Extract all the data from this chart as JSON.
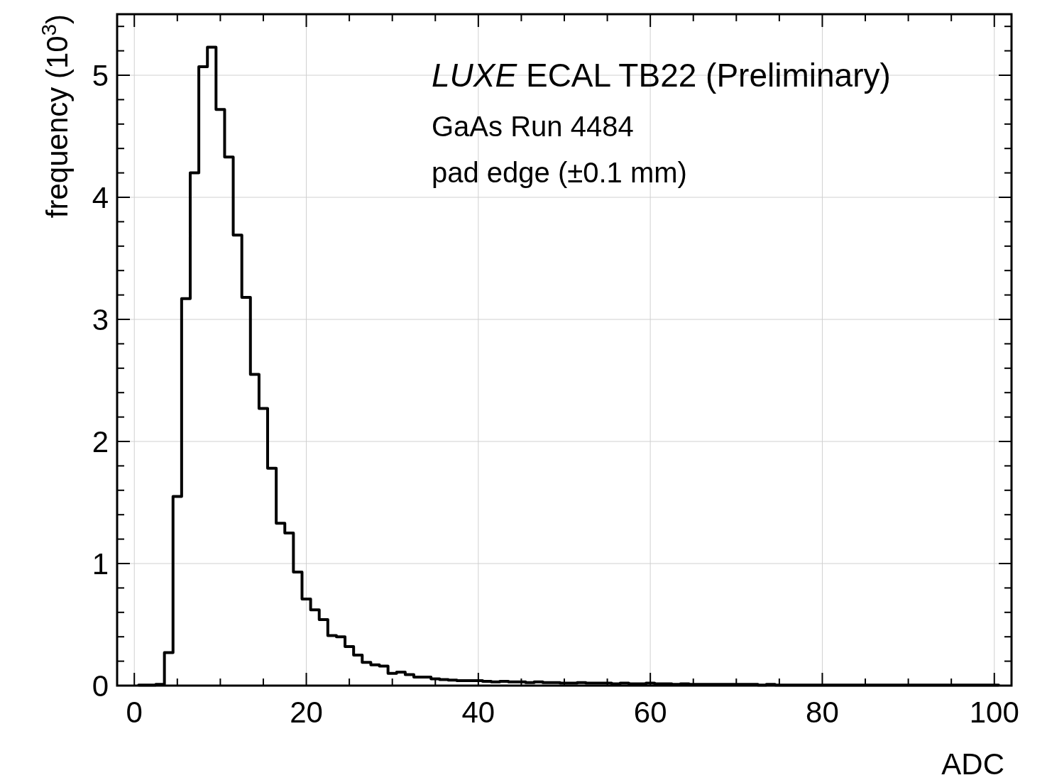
{
  "chart_data": {
    "type": "histogram",
    "xlabel": "ADC",
    "ylabel": "frequency (10$^{3}$)",
    "annotations": [
      "LUXE ECAL TB22 (Preliminary)",
      "GaAs Run 4484",
      "pad edge (±0.1 mm)"
    ],
    "bins": [
      0.5,
      1.5,
      2.5,
      3.5,
      4.5,
      5.5,
      6.5,
      7.5,
      8.5,
      9.5,
      10.5,
      11.5,
      12.5,
      13.5,
      14.5,
      15.5,
      16.5,
      17.5,
      18.5,
      19.5,
      20.5,
      21.5,
      22.5,
      23.5,
      24.5,
      25.5,
      26.5,
      27.5,
      28.5,
      29.5,
      30.5,
      31.5,
      32.5,
      33.5,
      34.5,
      35.5,
      36.5,
      37.5,
      38.5,
      39.5,
      40.5,
      41.5,
      42.5,
      43.5,
      44.5,
      45.5,
      46.5,
      47.5,
      48.5,
      49.5,
      50.5,
      51.5,
      52.5,
      53.5,
      54.5,
      55.5,
      56.5,
      57.5,
      58.5,
      59.5,
      60.5,
      61.5,
      62.5,
      63.5,
      64.5,
      65.5,
      66.5,
      67.5,
      68.5,
      69.5,
      70.5,
      71.5,
      72.5,
      73.5,
      74.5,
      75.5,
      76.5,
      77.5,
      78.5,
      79.5,
      80.5,
      81.5,
      82.5,
      83.5,
      84.5,
      85.5,
      86.5,
      87.5,
      88.5,
      89.5,
      90.5,
      91.5,
      92.5,
      93.5,
      94.5,
      95.5,
      96.5,
      97.5,
      98.5,
      99.5,
      100.5
    ],
    "values": [
      0.005,
      0.005,
      0.01,
      0.27,
      1.55,
      3.17,
      4.2,
      5.07,
      5.23,
      4.72,
      4.33,
      3.69,
      3.18,
      2.55,
      2.27,
      1.78,
      1.33,
      1.25,
      0.93,
      0.71,
      0.62,
      0.54,
      0.41,
      0.4,
      0.32,
      0.25,
      0.19,
      0.17,
      0.16,
      0.1,
      0.11,
      0.09,
      0.07,
      0.07,
      0.055,
      0.05,
      0.045,
      0.04,
      0.04,
      0.04,
      0.035,
      0.03,
      0.035,
      0.03,
      0.03,
      0.025,
      0.03,
      0.025,
      0.025,
      0.02,
      0.02,
      0.025,
      0.02,
      0.02,
      0.02,
      0.015,
      0.02,
      0.015,
      0.015,
      0.02,
      0.015,
      0.015,
      0.01,
      0.015,
      0.01,
      0.01,
      0.01,
      0.01,
      0.01,
      0.01,
      0.01,
      0.01,
      0.005,
      0.01,
      0.005,
      0.005,
      0.005,
      0.005,
      0.005,
      0.005,
      0.005,
      0.005,
      0.005,
      0.005,
      0.005,
      0.005,
      0.005,
      0.005,
      0.005,
      0.005,
      0.005,
      0.005,
      0.005,
      0.005,
      0.005,
      0.005,
      0.005,
      0.005,
      0.005,
      0.005
    ],
    "color": "#000000",
    "xlim": [
      -2,
      102
    ],
    "xticks": [
      0,
      {
        "value": 5,
        "label": null
      },
      {
        "value": 10,
        "label": null
      },
      {
        "value": 15,
        "label": null
      },
      20,
      {
        "value": 25,
        "label": null
      },
      {
        "value": 30,
        "label": null
      },
      {
        "value": 35,
        "label": null
      },
      40,
      {
        "value": 45,
        "label": null
      },
      {
        "value": 50,
        "label": null
      },
      {
        "value": 55,
        "label": null
      },
      60,
      {
        "value": 65,
        "label": null
      },
      {
        "value": 70,
        "label": null
      },
      {
        "value": 75,
        "label": null
      },
      80,
      {
        "value": 85,
        "label": null
      },
      {
        "value": 90,
        "label": null
      },
      {
        "value": 95,
        "label": null
      },
      100
    ],
    "ylim": [
      0,
      5.5
    ],
    "yticks": [
      0,
      {
        "value": 0.2,
        "label": null
      },
      {
        "value": 0.4,
        "label": null
      },
      {
        "value": 0.6,
        "label": null
      },
      {
        "value": 0.8,
        "label": null
      },
      1,
      {
        "value": 1.2,
        "label": null
      },
      {
        "value": 1.4,
        "label": null
      },
      {
        "value": 1.6,
        "label": null
      },
      {
        "value": 1.8,
        "label": null
      },
      2,
      {
        "value": 2.2,
        "label": null
      },
      {
        "value": 2.4,
        "label": null
      },
      {
        "value": 2.6,
        "label": null
      },
      {
        "value": 2.8,
        "label": null
      },
      3,
      {
        "value": 3.2,
        "label": null
      },
      {
        "value": 3.4,
        "label": null
      },
      {
        "value": 3.6,
        "label": null
      },
      {
        "value": 3.8,
        "label": null
      },
      4,
      {
        "value": 4.2,
        "label": null
      },
      {
        "value": 4.4,
        "label": null
      },
      {
        "value": 4.6,
        "label": null
      },
      {
        "value": 4.8,
        "label": null
      },
      5,
      {
        "value": 5.2,
        "label": null
      },
      {
        "value": 5.4,
        "label": null
      }
    ],
    "grid": true
  }
}
